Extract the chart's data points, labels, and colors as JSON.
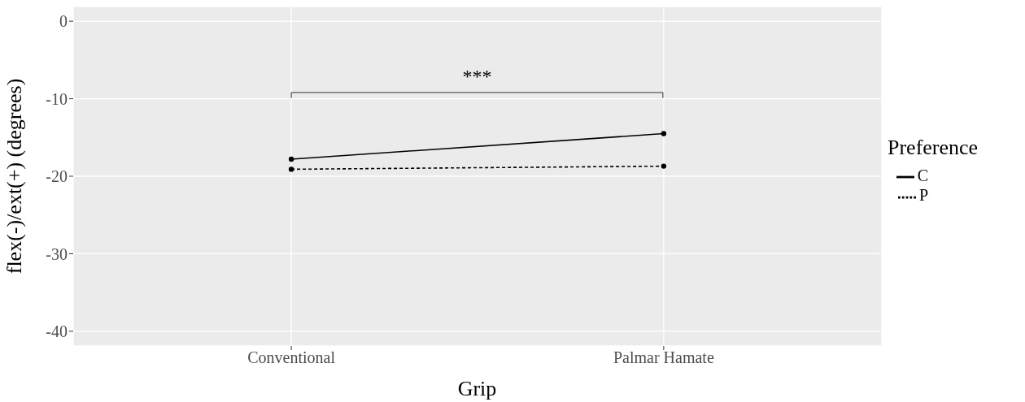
{
  "chart_data": {
    "type": "line",
    "xlabel": "Grip",
    "ylabel": "flex(-)/ext(+) (degrees)",
    "legend_title": "Preference",
    "categories": [
      "Conventional",
      "Palmar Hamate"
    ],
    "series": [
      {
        "name": "C",
        "color": "#000000",
        "line_style": "solid",
        "values": [
          -17.8,
          -14.5
        ]
      },
      {
        "name": "P",
        "color": "#000000",
        "line_style": "dashed",
        "values": [
          -19.1,
          -18.7
        ]
      }
    ],
    "ylim": [
      -41.9,
      1.9
    ],
    "yticks": [
      0,
      -10,
      -20,
      -30,
      -40
    ],
    "grid": true,
    "legend": "right",
    "marker": "circle",
    "annotations": [
      "***"
    ]
  }
}
